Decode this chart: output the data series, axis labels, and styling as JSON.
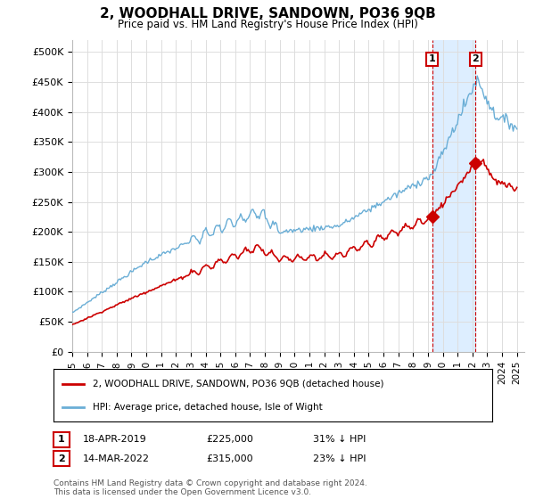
{
  "title": "2, WOODHALL DRIVE, SANDOWN, PO36 9QB",
  "subtitle": "Price paid vs. HM Land Registry's House Price Index (HPI)",
  "ylabel_ticks": [
    "£0",
    "£50K",
    "£100K",
    "£150K",
    "£200K",
    "£250K",
    "£300K",
    "£350K",
    "£400K",
    "£450K",
    "£500K"
  ],
  "ytick_values": [
    0,
    50000,
    100000,
    150000,
    200000,
    250000,
    300000,
    350000,
    400000,
    450000,
    500000
  ],
  "ylim": [
    0,
    520000
  ],
  "xlim_start": 1995.0,
  "xlim_end": 2025.5,
  "hpi_color": "#6aaed6",
  "price_color": "#cc0000",
  "shade_color": "#ddeeff",
  "sale1_date": "18-APR-2019",
  "sale1_price": 225000,
  "sale1_pct": "31% ↓ HPI",
  "sale2_date": "14-MAR-2022",
  "sale2_price": 315000,
  "sale2_pct": "23% ↓ HPI",
  "sale1_x": 2019.29,
  "sale2_x": 2022.21,
  "legend_line1": "2, WOODHALL DRIVE, SANDOWN, PO36 9QB (detached house)",
  "legend_line2": "HPI: Average price, detached house, Isle of Wight",
  "footer": "Contains HM Land Registry data © Crown copyright and database right 2024.\nThis data is licensed under the Open Government Licence v3.0.",
  "xtick_years": [
    1995,
    1996,
    1997,
    1998,
    1999,
    2000,
    2001,
    2002,
    2003,
    2004,
    2005,
    2006,
    2007,
    2008,
    2009,
    2010,
    2011,
    2012,
    2013,
    2014,
    2015,
    2016,
    2017,
    2018,
    2019,
    2020,
    2021,
    2022,
    2023,
    2024,
    2025
  ]
}
